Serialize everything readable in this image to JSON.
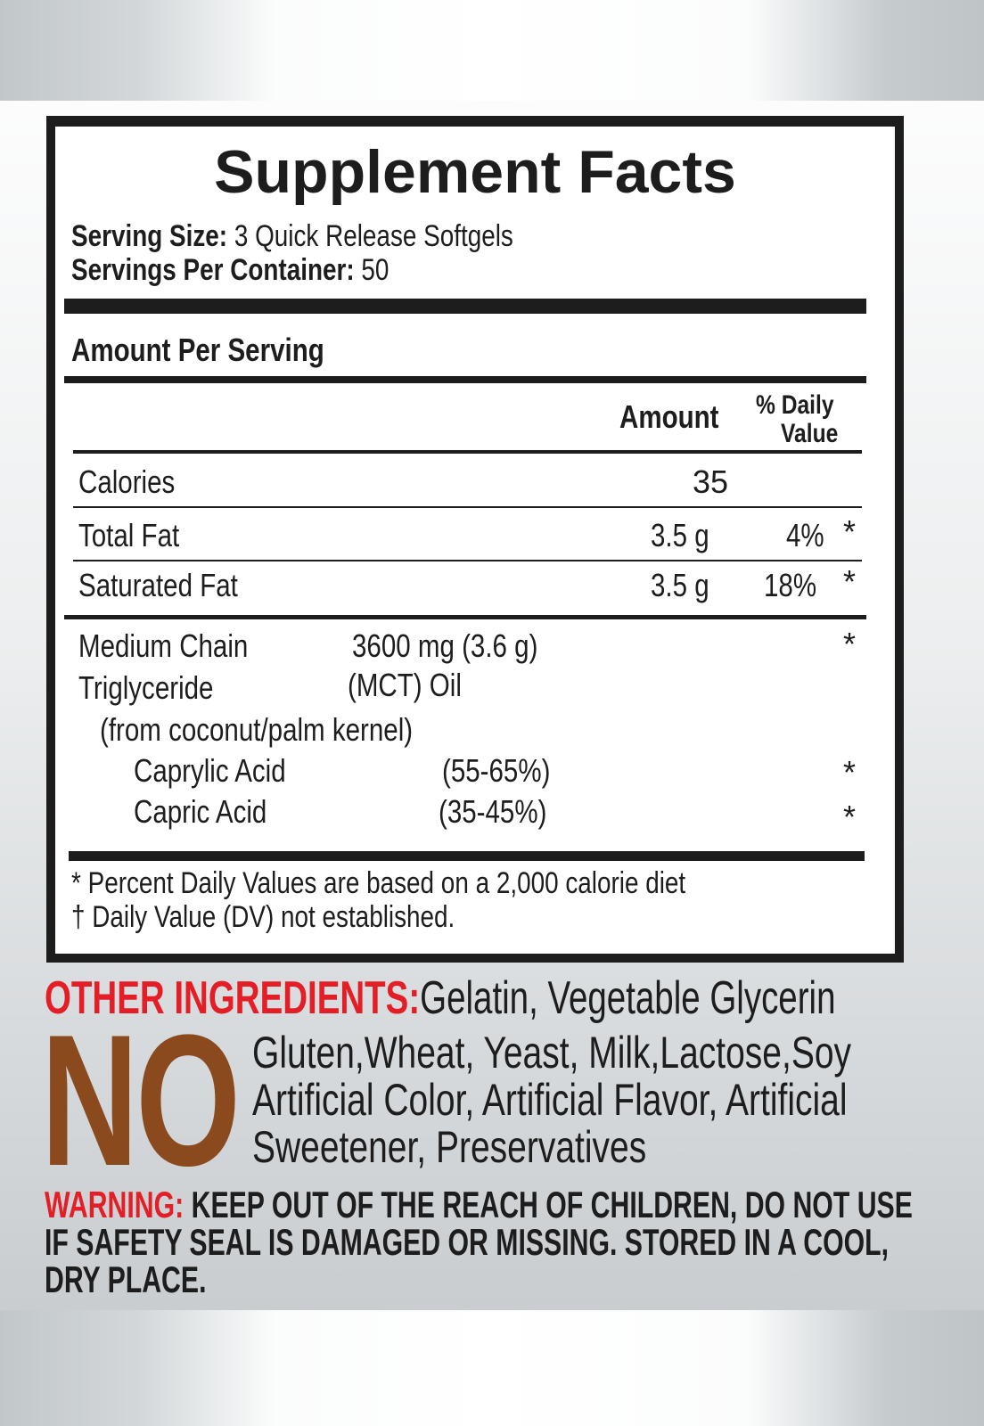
{
  "title": "Supplement Facts",
  "serving_size": {
    "label": "Serving Size:",
    "value": "3 Quick Release Softgels"
  },
  "servings_per_container": {
    "label": "Servings Per Container:",
    "value": "50"
  },
  "amount_per_serving": "Amount Per Serving",
  "columns": {
    "amount": "Amount",
    "dv_line1": "% Daily",
    "dv_line2": "Value"
  },
  "rows": [
    {
      "name": "Calories",
      "amount": "35",
      "dv": "",
      "mark": ""
    },
    {
      "name": "Total Fat",
      "amount": "3.5 g",
      "dv": "4%",
      "mark": "*"
    },
    {
      "name": "Saturated Fat",
      "amount": "3.5 g",
      "dv": "18%",
      "mark": "*"
    }
  ],
  "mct": {
    "line1": "Medium Chain",
    "line2": "Triglyceride",
    "amount1": "3600 mg (3.6 g)",
    "amount2": "(MCT) Oil",
    "source": "(from coconut/palm kernel)",
    "mark": "*",
    "subs": [
      {
        "name": "Caprylic Acid",
        "range": "(55-65%)",
        "mark": "*"
      },
      {
        "name": "Capric Acid",
        "range": "(35-45%)",
        "mark": "*"
      }
    ]
  },
  "footnotes": [
    "* Percent Daily Values are based on a 2,000 calorie diet",
    "† Daily Value (DV) not established."
  ],
  "other_ingredients": {
    "label": "OTHER INGREDIENTS:",
    "value": "Gelatin, Vegetable Glycerin"
  },
  "no": {
    "word": "NO",
    "lines": [
      "Gluten,Wheat, Yeast, Milk,Lactose,Soy",
      "Artificial Color, Artificial Flavor, Artificial",
      "Sweetener, Preservatives"
    ]
  },
  "warning": {
    "label": "WARNING:",
    "lines": [
      "KEEP OUT OF THE REACH OF CHILDREN, DO NOT USE",
      "IF SAFETY SEAL IS DAMAGED OR MISSING. STORED IN A COOL,",
      "DRY PLACE."
    ]
  },
  "colors": {
    "red": "#e31e26",
    "brown": "#8b4a1e",
    "ink": "#1d1d1d"
  }
}
